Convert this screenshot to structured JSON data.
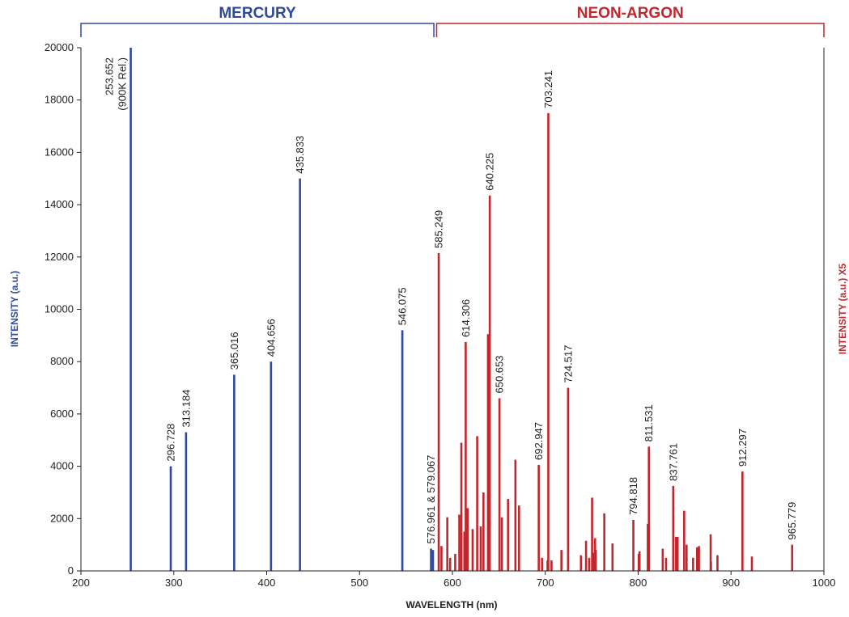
{
  "chart_data": {
    "type": "bar",
    "xlabel": "WAVELENGTH (nm)",
    "ylabel_left": "INTENSITY (a.u.)",
    "ylabel_right": "INTENSITY (a.u.) X5",
    "xlim": [
      200,
      1000
    ],
    "ylim": [
      0,
      20000
    ],
    "x_ticks": [
      200,
      300,
      400,
      500,
      600,
      700,
      800,
      900,
      1000
    ],
    "y_ticks": [
      0,
      2000,
      4000,
      6000,
      8000,
      10000,
      12000,
      14000,
      16000,
      18000,
      20000
    ],
    "grid": false,
    "colors": {
      "mercury": "#2e4a9e",
      "neon_argon": "#c1272d",
      "axis": "#222222"
    },
    "regions": [
      {
        "label": "MERCURY",
        "range": [
          200,
          580
        ],
        "color": "#2e4a9e"
      },
      {
        "label": "NEON-ARGON",
        "range": [
          583,
          1000
        ],
        "color": "#c1272d"
      }
    ],
    "series": [
      {
        "name": "MERCURY",
        "color": "#2e4a9e",
        "points": [
          [
            253.652,
            20000
          ],
          [
            296.728,
            4000
          ],
          [
            313.184,
            5300
          ],
          [
            365.016,
            7500
          ],
          [
            404.656,
            8000
          ],
          [
            435.833,
            15000
          ],
          [
            546.075,
            9200
          ],
          [
            576.961,
            850
          ],
          [
            579.067,
            800
          ]
        ]
      },
      {
        "name": "NEON-ARGON",
        "color": "#c1272d",
        "points": [
          [
            585.249,
            12150
          ],
          [
            588.19,
            950
          ],
          [
            594.48,
            2050
          ],
          [
            597.55,
            500
          ],
          [
            603.0,
            650
          ],
          [
            607.43,
            2150
          ],
          [
            609.62,
            4900
          ],
          [
            612.84,
            1500
          ],
          [
            614.31,
            8750
          ],
          [
            616.36,
            2400
          ],
          [
            621.73,
            1600
          ],
          [
            626.65,
            5150
          ],
          [
            630.48,
            1700
          ],
          [
            633.44,
            3000
          ],
          [
            638.3,
            9050
          ],
          [
            640.23,
            14350
          ],
          [
            650.65,
            6600
          ],
          [
            653.29,
            2050
          ],
          [
            659.9,
            2750
          ],
          [
            667.83,
            4250
          ],
          [
            671.7,
            2500
          ],
          [
            692.95,
            4050
          ],
          [
            696.54,
            500
          ],
          [
            702.41,
            400
          ],
          [
            703.24,
            17500
          ],
          [
            706.72,
            400
          ],
          [
            717.39,
            800
          ],
          [
            724.52,
            7000
          ],
          [
            738.4,
            600
          ],
          [
            743.89,
            1150
          ],
          [
            747.24,
            500
          ],
          [
            750.39,
            2800
          ],
          [
            751.47,
            700
          ],
          [
            753.58,
            1250
          ],
          [
            754.4,
            800
          ],
          [
            763.51,
            2200
          ],
          [
            772.38,
            1050
          ],
          [
            794.82,
            1950
          ],
          [
            800.62,
            650
          ],
          [
            801.48,
            750
          ],
          [
            810.37,
            1800
          ],
          [
            811.53,
            4750
          ],
          [
            826.45,
            850
          ],
          [
            830.03,
            500
          ],
          [
            837.76,
            3250
          ],
          [
            840.82,
            1300
          ],
          [
            842.47,
            1300
          ],
          [
            849.54,
            2300
          ],
          [
            852.14,
            1000
          ],
          [
            859.13,
            500
          ],
          [
            863.46,
            900
          ],
          [
            865.44,
            950
          ],
          [
            878.06,
            1400
          ],
          [
            878.38,
            350
          ],
          [
            885.39,
            600
          ],
          [
            912.3,
            3800
          ],
          [
            922.45,
            550
          ],
          [
            965.78,
            1000
          ]
        ]
      }
    ],
    "peak_labels": [
      {
        "wavelength": 253.652,
        "lines": [
          "253.652",
          "(900K Rel.)"
        ],
        "series": "MERCURY",
        "inside": true
      },
      {
        "wavelength": 296.728,
        "lines": [
          "296.728"
        ],
        "series": "MERCURY"
      },
      {
        "wavelength": 313.184,
        "lines": [
          "313.184"
        ],
        "series": "MERCURY"
      },
      {
        "wavelength": 365.016,
        "lines": [
          "365.016"
        ],
        "series": "MERCURY"
      },
      {
        "wavelength": 404.656,
        "lines": [
          "404.656"
        ],
        "series": "MERCURY"
      },
      {
        "wavelength": 435.833,
        "lines": [
          "435.833"
        ],
        "series": "MERCURY"
      },
      {
        "wavelength": 546.075,
        "lines": [
          "546.075"
        ],
        "series": "MERCURY"
      },
      {
        "wavelength": 576.961,
        "lines": [
          "576.961 & 579.067"
        ],
        "series": "MERCURY"
      },
      {
        "wavelength": 585.249,
        "lines": [
          "585.249"
        ],
        "series": "NEON-ARGON"
      },
      {
        "wavelength": 614.306,
        "lines": [
          "614.306"
        ],
        "series": "NEON-ARGON"
      },
      {
        "wavelength": 640.225,
        "lines": [
          "640.225"
        ],
        "series": "NEON-ARGON"
      },
      {
        "wavelength": 650.653,
        "lines": [
          "650.653"
        ],
        "series": "NEON-ARGON"
      },
      {
        "wavelength": 692.947,
        "lines": [
          "692.947"
        ],
        "series": "NEON-ARGON"
      },
      {
        "wavelength": 703.241,
        "lines": [
          "703.241"
        ],
        "series": "NEON-ARGON"
      },
      {
        "wavelength": 724.517,
        "lines": [
          "724.517"
        ],
        "series": "NEON-ARGON"
      },
      {
        "wavelength": 794.818,
        "lines": [
          "794.818"
        ],
        "series": "NEON-ARGON"
      },
      {
        "wavelength": 811.531,
        "lines": [
          "811.531"
        ],
        "series": "NEON-ARGON"
      },
      {
        "wavelength": 837.761,
        "lines": [
          "837.761"
        ],
        "series": "NEON-ARGON"
      },
      {
        "wavelength": 912.297,
        "lines": [
          "912.297"
        ],
        "series": "NEON-ARGON"
      },
      {
        "wavelength": 965.779,
        "lines": [
          "965.779"
        ],
        "series": "NEON-ARGON"
      }
    ]
  }
}
